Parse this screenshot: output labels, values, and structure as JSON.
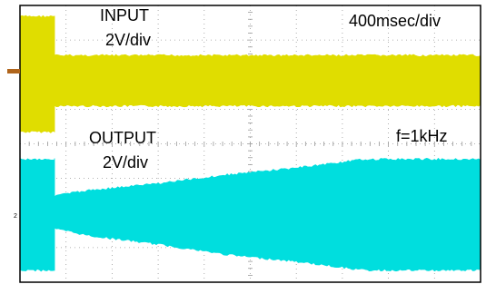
{
  "chart_data": {
    "type": "area",
    "grid": true,
    "annotations": {
      "input_label": "INPUT",
      "input_scale": "2V/div",
      "output_label": "OUTPUT",
      "output_scale": "2V/div",
      "timebase": "400msec/div",
      "frequency": "f=1kHz"
    },
    "marker_label": "2",
    "x_divisions": 10,
    "y_divisions": 8,
    "series": [
      {
        "name": "INPUT",
        "color": "#e0dd00",
        "x_div": [
          0,
          0.75,
          0.75,
          10
        ],
        "top_div": [
          0.32,
          0.32,
          1.45,
          1.45
        ],
        "bottom_div": [
          3.65,
          3.65,
          2.9,
          2.9
        ]
      },
      {
        "name": "OUTPUT",
        "color": "#00dede",
        "x_div": [
          0,
          0.75,
          0.75,
          1.5,
          3.0,
          4.5,
          6.0,
          7.5,
          10
        ],
        "top_div": [
          4.45,
          4.45,
          5.5,
          5.35,
          5.15,
          4.9,
          4.7,
          4.45,
          4.45
        ],
        "bottom_div": [
          7.65,
          7.65,
          6.45,
          6.65,
          6.9,
          7.2,
          7.4,
          7.65,
          7.65
        ]
      }
    ]
  }
}
